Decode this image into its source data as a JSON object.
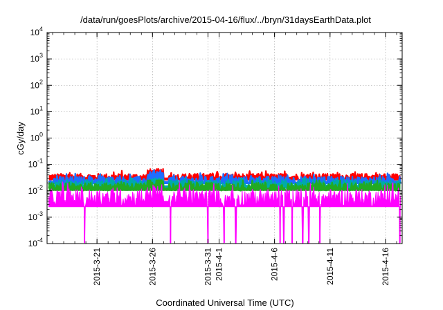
{
  "chart_data": {
    "type": "area",
    "title": "/data/run/goesPlots/archive/2015-04-16/flux/../bryn/31daysEarthData.plot",
    "xlabel": "Coordinated Universal Time (UTC)",
    "ylabel": "cGy/day",
    "y_scale": "log",
    "ylim": [
      0.0001,
      10000
    ],
    "xlim": [
      "2015-03-16T12:00",
      "2015-04-17T12:00"
    ],
    "grid": true,
    "x_ticks": [
      "2015-3-21",
      "2015-3-26",
      "2015-3-31",
      "2015-4-1",
      "2015-4-6",
      "2015-4-11",
      "2015-4-16"
    ],
    "y_ticks": [
      {
        "value": 0.0001,
        "base": "10",
        "exp": "-4"
      },
      {
        "value": 0.001,
        "base": "10",
        "exp": "-3"
      },
      {
        "value": 0.01,
        "base": "10",
        "exp": "-2"
      },
      {
        "value": 0.1,
        "base": "10",
        "exp": "-1"
      },
      {
        "value": 1,
        "base": "10",
        "exp": "0"
      },
      {
        "value": 10,
        "base": "10",
        "exp": "1"
      },
      {
        "value": 100,
        "base": "10",
        "exp": "2"
      },
      {
        "value": 1000,
        "base": "10",
        "exp": "3"
      },
      {
        "value": 10000,
        "base": "10",
        "exp": "4"
      }
    ],
    "series": [
      {
        "color": "#ff0000",
        "typical_range": [
          0.025,
          0.045
        ],
        "peak": 0.075
      },
      {
        "color": "#1e6eff",
        "typical_range": [
          0.018,
          0.035
        ],
        "peak": 0.06
      },
      {
        "color": "#00aaaa",
        "typical_range": [
          0.012,
          0.025
        ],
        "peak": 0.03
      },
      {
        "color": "#22aa22",
        "typical_range": [
          0.01,
          0.02
        ],
        "peak": 0.025
      },
      {
        "color": "#ff00ff",
        "typical_range": [
          0.0025,
          0.012
        ],
        "min": 0.0001
      }
    ],
    "data_gap": [
      "2015-03-27T00:00",
      "2015-03-27T12:00"
    ],
    "dropouts": [
      "2015-03-19T21:00",
      "2015-03-27T15:00",
      "2015-03-31T00:00",
      "2015-04-01T11:00",
      "2015-04-02T12:00",
      "2015-04-06T12:00",
      "2015-04-06T20:00",
      "2015-04-07T14:00",
      "2015-04-08T13:00",
      "2015-04-09T02:00",
      "2015-04-10T02:00",
      "2015-04-17T07:00"
    ]
  }
}
